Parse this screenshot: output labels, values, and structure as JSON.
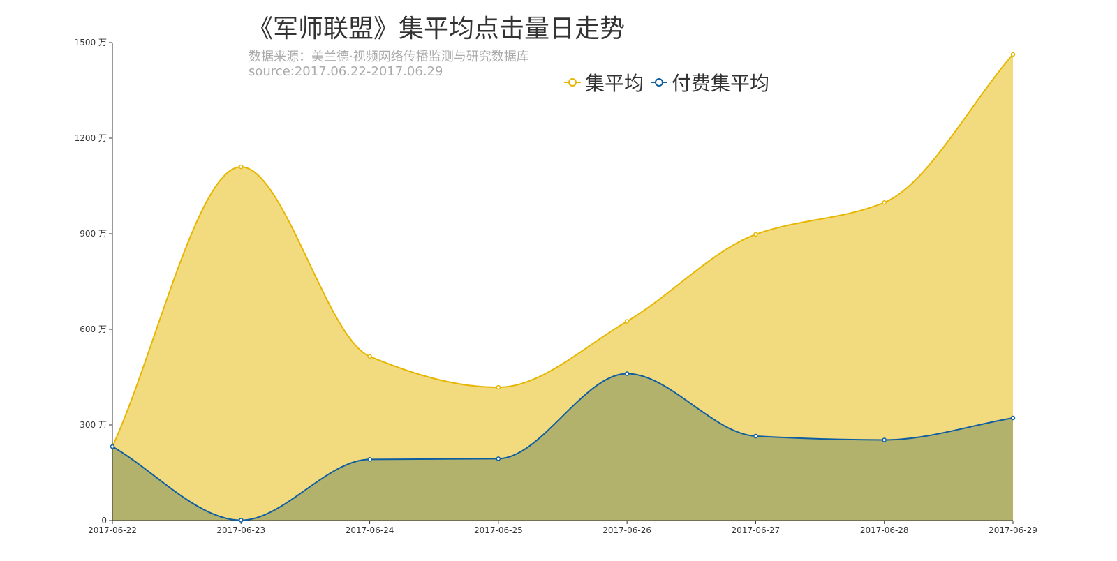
{
  "title": "《军师联盟》集平均点击量日走势",
  "subtitle_line1": "数据来源：美兰德·视频网络传播监测与研究数据库",
  "subtitle_line2": "source:2017.06.22-2017.06.29",
  "legend": [
    {
      "name": "集平均",
      "icon": "circle-outline-icon"
    },
    {
      "name": "付费集平均",
      "icon": "circle-outline-icon"
    }
  ],
  "colors": {
    "series1_line": "#e6b600",
    "series1_fill": "#f2da7f",
    "series2_line": "#0f5ea1",
    "series2_fill": "#b2b26c",
    "axis": "#333333"
  },
  "chart_data": {
    "type": "area",
    "title": "《军师联盟》集平均点击量日走势",
    "x": [
      "2017-06-22",
      "2017-06-23",
      "2017-06-24",
      "2017-06-25",
      "2017-06-26",
      "2017-06-27",
      "2017-06-28",
      "2017-06-29"
    ],
    "yticks": [
      "0",
      "300 万",
      "600 万",
      "900 万",
      "1200 万",
      "1500 万"
    ],
    "ylim": [
      0,
      1500
    ],
    "yunit": "万",
    "smooth": true,
    "grid": false,
    "legend_position": "top",
    "series": [
      {
        "name": "集平均",
        "values": [
          232,
          1110,
          515,
          418,
          625,
          898,
          998,
          1463
        ]
      },
      {
        "name": "付费集平均",
        "values": [
          232,
          1,
          192,
          194,
          461,
          265,
          253,
          322
        ]
      }
    ]
  }
}
